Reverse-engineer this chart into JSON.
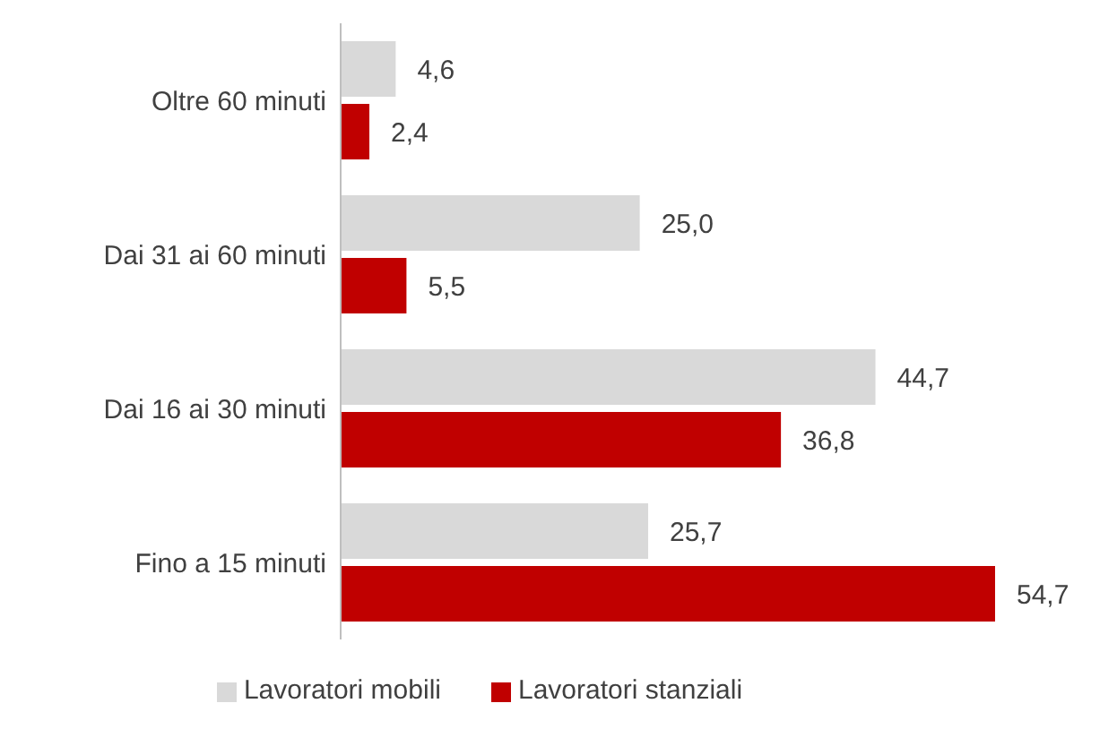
{
  "chart_data": {
    "type": "bar",
    "orientation": "horizontal",
    "categories": [
      "Oltre 60 minuti",
      "Dai 31 ai 60 minuti",
      "Dai 16 ai 30 minuti",
      "Fino a 15 minuti"
    ],
    "series": [
      {
        "name": "Lavoratori mobili",
        "color": "#d9d9d9",
        "values": [
          4.6,
          25.0,
          44.7,
          25.7
        ],
        "value_labels": [
          "4,6",
          "25,0",
          "44,7",
          "25,7"
        ]
      },
      {
        "name": "Lavoratori stanziali",
        "color": "#c00000",
        "values": [
          2.4,
          5.5,
          36.8,
          54.7
        ],
        "value_labels": [
          "2,4",
          "5,5",
          "36,8",
          "54,7"
        ]
      }
    ],
    "legend": "bottom",
    "grid": false
  }
}
